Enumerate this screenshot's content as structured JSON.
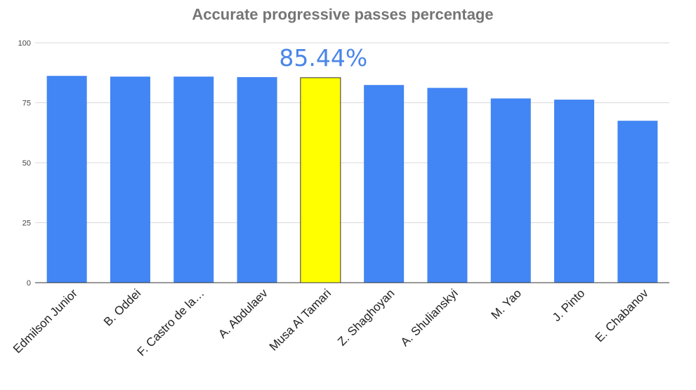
{
  "chart_data": {
    "type": "bar",
    "title": "Accurate progressive passes percentage",
    "xlabel": "",
    "ylabel": "",
    "categories": [
      "Edmilson Junior",
      "B. Oddei",
      "F. Castro de la…",
      "A. Abdulaev",
      "Musa Al Tamari",
      "Z. Shaghoyan",
      "A. Shulianskyi",
      "M. Yao",
      "J. Pinto",
      "E. Chabanov"
    ],
    "values": [
      86.2,
      85.9,
      85.9,
      85.7,
      85.44,
      82.4,
      81.2,
      76.8,
      76.3,
      67.5
    ],
    "ylim": [
      0,
      100
    ],
    "yticks": [
      0,
      25,
      50,
      75,
      100
    ],
    "grid": true,
    "legend": "none",
    "colors": {
      "bar": "#4285f4",
      "highlight": "#ffff00",
      "highlight_border": "#333333",
      "annotation": "#4a86e8",
      "gridline": "#d9d9d9",
      "axis": "#333333"
    },
    "highlight_index": 4,
    "annotation": {
      "text": "85.44%",
      "bar_index": 4
    }
  }
}
